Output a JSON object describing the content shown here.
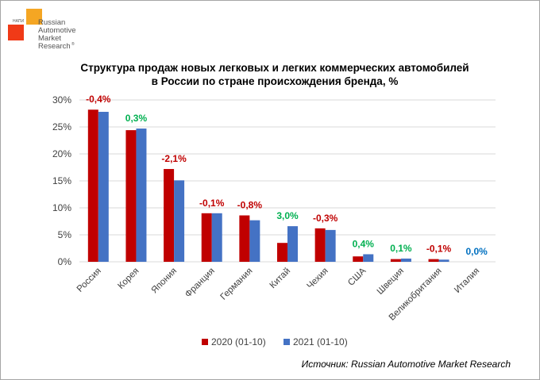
{
  "logo": {
    "small_text": "НАПИ",
    "lines": [
      "Russian",
      "Automotive",
      "Market",
      "Research"
    ],
    "mark": "®"
  },
  "source": "Источник: Russian Automotive Market Research",
  "chart_data": {
    "type": "bar",
    "title": "Структура продаж новых легковых и легких коммерческих автомобилей в России по стране происхождения бренда, %",
    "title_lines": [
      "Структура продаж новых легковых и легких коммерческих автомобилей",
      "в России по стране происхождения бренда, %"
    ],
    "categories": [
      "Россия",
      "Корея",
      "Япония",
      "Франция",
      "Германия",
      "Китай",
      "Чехия",
      "США",
      "Швеция",
      "Великобритания",
      "Италия"
    ],
    "series": [
      {
        "name": "2020 (01-10)",
        "color": "#c00000",
        "values": [
          28.2,
          24.4,
          17.2,
          9.0,
          8.6,
          3.5,
          6.2,
          1.0,
          0.5,
          0.5,
          0.0
        ]
      },
      {
        "name": "2021 (01-10)",
        "color": "#4472c4",
        "values": [
          27.8,
          24.7,
          15.1,
          9.0,
          7.7,
          6.6,
          5.9,
          1.4,
          0.6,
          0.4,
          0.0
        ]
      }
    ],
    "annotations": [
      "-0,4%",
      "0,3%",
      "-2,1%",
      "-0,1%",
      "-0,8%",
      "3,0%",
      "-0,3%",
      "0,4%",
      "0,1%",
      "-0,1%",
      "0,0%"
    ],
    "annotation_colors": [
      "#c00000",
      "#00b050",
      "#c00000",
      "#c00000",
      "#c00000",
      "#00b050",
      "#c00000",
      "#00b050",
      "#00b050",
      "#c00000",
      "#0070c0"
    ],
    "yticks": [
      "0%",
      "5%",
      "10%",
      "15%",
      "20%",
      "25%",
      "30%"
    ],
    "ylim": [
      0,
      30
    ],
    "grid": true,
    "legend": "bottom"
  }
}
